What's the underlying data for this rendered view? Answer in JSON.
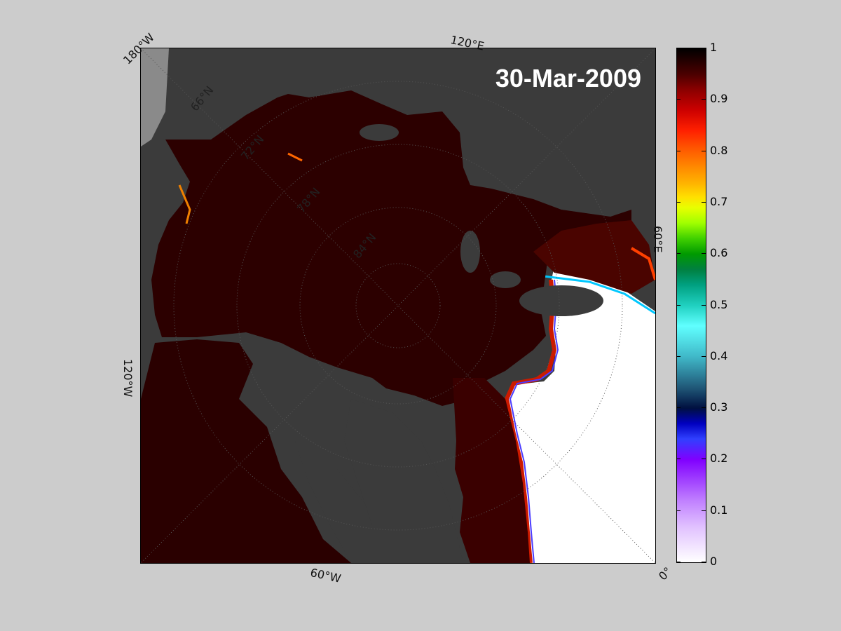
{
  "map": {
    "date": "30-Mar-2009",
    "meridian_labels": {
      "lon_180w": "180°W",
      "lon_120e": "120°E",
      "lon_60e": "60°E",
      "lon_0": "0°",
      "lon_60w": "60°W",
      "lon_120w": "120°W"
    },
    "parallel_labels": {
      "lat_66n": "66°N",
      "lat_72n": "72°N",
      "lat_78n": "78°N",
      "lat_84n": "84°N"
    },
    "colors": {
      "land": "#3b3b3b",
      "land_light": "#888888",
      "ice_high": "#2c0000",
      "open_water": "#ffffff",
      "background": "#cccccc"
    }
  },
  "colorbar": {
    "ticks": [
      "1",
      "0.9",
      "0.8",
      "0.7",
      "0.6",
      "0.5",
      "0.4",
      "0.3",
      "0.2",
      "0.1",
      "0"
    ],
    "range": [
      0,
      1
    ]
  }
}
